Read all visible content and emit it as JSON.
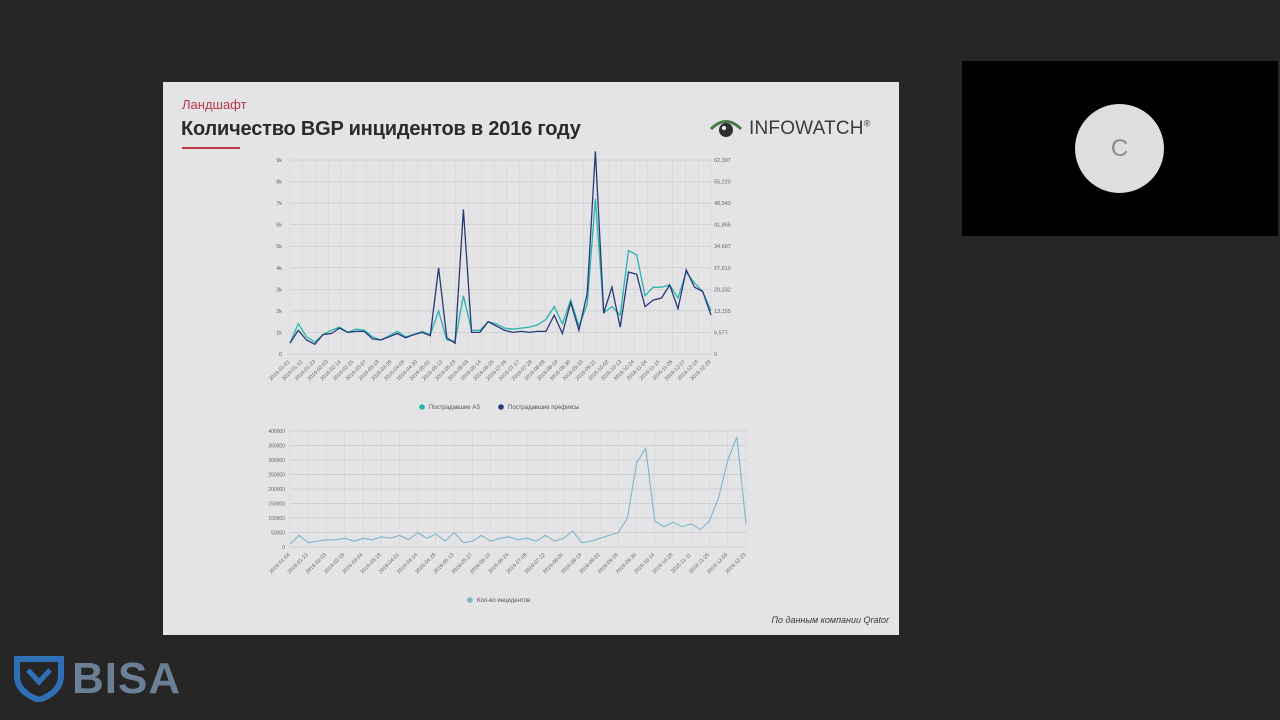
{
  "slide": {
    "section": "Ландшафт",
    "title": "Количество BGP инцидентов в 2016 году",
    "logo_text": "INFOWATCH",
    "logo_mark": "®",
    "source_note": "По данным компании Qrator"
  },
  "participant": {
    "initial": "C"
  },
  "brand": {
    "name": "BISA"
  },
  "colors": {
    "series_teal": "#27b5ae",
    "series_navy": "#273a78",
    "series_light": "#7fb4cc",
    "accent_red": "#c0394a"
  },
  "chart_data": [
    {
      "type": "line",
      "y_ticks_left": [
        "0",
        "1k",
        "2k",
        "3k",
        "4k",
        "5k",
        "6k",
        "7k",
        "8k",
        "9k"
      ],
      "y_ticks_right": [
        "0",
        "6,577",
        "13,155",
        "20,332",
        "27,510",
        "34,687",
        "41,865",
        "48,043",
        "55,220",
        "62,397"
      ],
      "ylim": [
        0,
        9000
      ],
      "x_ticks": [
        "2016-01-01",
        "2016-01-12",
        "2016-01-23",
        "2016-02-03",
        "2016-02-14",
        "2016-02-25",
        "2016-03-07",
        "2016-03-18",
        "2016-03-29",
        "2016-04-09",
        "2016-04-20",
        "2016-05-01",
        "2016-05-12",
        "2016-05-23",
        "2016-06-03",
        "2016-06-14",
        "2016-06-25",
        "2016-07-06",
        "2016-07-17",
        "2016-07-28",
        "2016-08-08",
        "2016-08-19",
        "2016-08-30",
        "2016-09-10",
        "2016-09-21",
        "2016-10-02",
        "2016-10-13",
        "2016-10-24",
        "2016-11-04",
        "2016-11-15",
        "2016-11-26",
        "2016-12-07",
        "2016-12-18",
        "2016-12-29"
      ],
      "legend_position": "bottom",
      "grid": true,
      "series": [
        {
          "name": "Пострадавшие AS",
          "values": [
            500,
            1400,
            800,
            550,
            900,
            1100,
            1250,
            1000,
            1150,
            1100,
            800,
            650,
            850,
            1050,
            800,
            900,
            1050,
            900,
            2000,
            650,
            600,
            2700,
            1100,
            1100,
            1500,
            1400,
            1200,
            1150,
            1200,
            1250,
            1350,
            1600,
            2200,
            1400,
            2500,
            1300,
            2300,
            7200,
            1900,
            2200,
            1800,
            4800,
            4600,
            2700,
            3100,
            3100,
            3200,
            2600,
            3800,
            3300,
            2900,
            2000
          ]
        },
        {
          "name": "Пострадавшие префиксы",
          "values": [
            500,
            1100,
            650,
            450,
            900,
            950,
            1200,
            1000,
            1050,
            1050,
            700,
            650,
            800,
            950,
            750,
            900,
            1000,
            850,
            4000,
            750,
            500,
            6700,
            1000,
            1000,
            1500,
            1300,
            1100,
            1000,
            1050,
            1000,
            1050,
            1050,
            1800,
            950,
            2400,
            1100,
            2800,
            9400,
            1900,
            3100,
            1250,
            3800,
            3700,
            2200,
            2500,
            2600,
            3200,
            2100,
            3900,
            3100,
            2900,
            1800
          ]
        }
      ]
    },
    {
      "type": "line",
      "y_ticks": [
        "0",
        "50000",
        "100000",
        "150000",
        "200000",
        "250000",
        "300000",
        "350000",
        "400000"
      ],
      "ylim": [
        0,
        400000
      ],
      "x_ticks": [
        "2016-01-04",
        "2016-01-22",
        "2016-02-03",
        "2016-02-18",
        "2016-03-04",
        "2016-03-18",
        "2016-04-01",
        "2016-04-14",
        "2016-04-28",
        "2016-05-13",
        "2016-05-27",
        "2016-06-10",
        "2016-06-24",
        "2016-07-08",
        "2016-07-22",
        "2016-08-05",
        "2016-08-19",
        "2016-09-02",
        "2016-09-16",
        "2016-09-30",
        "2016-10-14",
        "2016-10-28",
        "2016-11-11",
        "2016-11-25",
        "2016-12-09",
        "2016-12-23"
      ],
      "legend_position": "bottom",
      "grid": true,
      "series": [
        {
          "name": "Кол-во инцидентов",
          "values": [
            10000,
            40000,
            15000,
            20000,
            25000,
            25000,
            30000,
            20000,
            30000,
            25000,
            35000,
            30000,
            40000,
            25000,
            50000,
            30000,
            45000,
            20000,
            50000,
            15000,
            20000,
            40000,
            20000,
            30000,
            35000,
            25000,
            30000,
            20000,
            40000,
            20000,
            30000,
            55000,
            15000,
            20000,
            30000,
            40000,
            50000,
            100000,
            290000,
            340000,
            90000,
            70000,
            85000,
            70000,
            80000,
            60000,
            90000,
            170000,
            300000,
            380000,
            80000
          ]
        }
      ]
    }
  ]
}
